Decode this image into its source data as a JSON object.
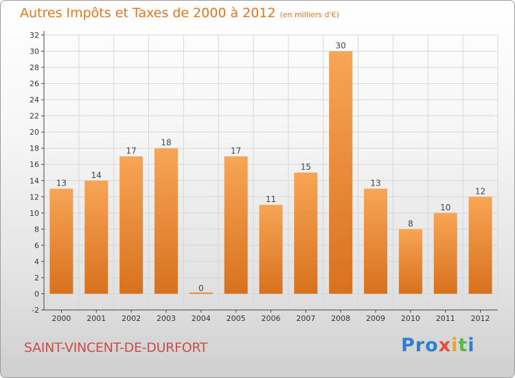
{
  "chart_data": {
    "type": "bar",
    "title": "Autres Impôts et Taxes de 2000 à 2012",
    "subtitle": "(en milliers d'€)",
    "categories": [
      "2000",
      "2001",
      "2002",
      "2003",
      "2004",
      "2005",
      "2006",
      "2007",
      "2008",
      "2009",
      "2010",
      "2011",
      "2012"
    ],
    "values": [
      13,
      14,
      17,
      18,
      0,
      17,
      11,
      15,
      30,
      13,
      8,
      10,
      12
    ],
    "ylim": [
      -2,
      32
    ],
    "yticks": [
      -2,
      0,
      2,
      4,
      6,
      8,
      10,
      12,
      14,
      16,
      18,
      20,
      22,
      24,
      26,
      28,
      30,
      32
    ],
    "grid": true,
    "bar_color": "#f0963c"
  },
  "footer": {
    "commune": "SAINT-VINCENT-DE-DURFORT",
    "logo_parts": [
      "Pro",
      "x",
      "i",
      "t",
      "i"
    ]
  }
}
